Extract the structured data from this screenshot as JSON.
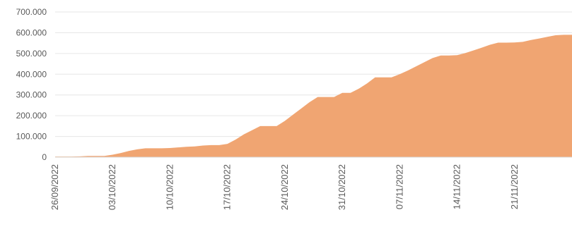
{
  "chart_data": {
    "type": "area",
    "title": "",
    "xlabel": "",
    "ylabel": "",
    "grid": true,
    "legend": "none",
    "ylim": [
      0,
      700000
    ],
    "yticks": [
      0,
      100000,
      200000,
      300000,
      400000,
      500000,
      600000,
      700000
    ],
    "ytick_labels": [
      "0",
      "100.000",
      "200.000",
      "300.000",
      "400.000",
      "500.000",
      "600.000",
      "700.000"
    ],
    "x_tick_labels": [
      "26/09/2022",
      "03/10/2022",
      "10/10/2022",
      "17/10/2022",
      "24/10/2022",
      "31/10/2022",
      "07/11/2022",
      "14/11/2022",
      "21/11/2022"
    ],
    "x_start": "26/09/2022",
    "x_end": "28/11/2022",
    "series": [
      {
        "color": "#f0a572",
        "x": [
          "26/09/2022",
          "27/09/2022",
          "28/09/2022",
          "29/09/2022",
          "30/09/2022",
          "01/10/2022",
          "02/10/2022",
          "03/10/2022",
          "04/10/2022",
          "05/10/2022",
          "06/10/2022",
          "07/10/2022",
          "08/10/2022",
          "09/10/2022",
          "10/10/2022",
          "11/10/2022",
          "12/10/2022",
          "13/10/2022",
          "14/10/2022",
          "15/10/2022",
          "16/10/2022",
          "17/10/2022",
          "18/10/2022",
          "19/10/2022",
          "20/10/2022",
          "21/10/2022",
          "22/10/2022",
          "23/10/2022",
          "24/10/2022",
          "25/10/2022",
          "26/10/2022",
          "27/10/2022",
          "28/10/2022",
          "29/10/2022",
          "30/10/2022",
          "31/10/2022",
          "01/11/2022",
          "02/11/2022",
          "03/11/2022",
          "04/11/2022",
          "05/11/2022",
          "06/11/2022",
          "07/11/2022",
          "08/11/2022",
          "09/11/2022",
          "10/11/2022",
          "11/11/2022",
          "12/11/2022",
          "13/11/2022",
          "14/11/2022",
          "15/11/2022",
          "16/11/2022",
          "17/11/2022",
          "18/11/2022",
          "19/11/2022",
          "20/11/2022",
          "21/11/2022",
          "22/11/2022",
          "23/11/2022",
          "24/11/2022",
          "25/11/2022",
          "26/11/2022",
          "27/11/2022",
          "28/11/2022"
        ],
        "values": [
          3000,
          3000,
          3000,
          4000,
          6000,
          6000,
          6000,
          12000,
          20000,
          30000,
          38000,
          43000,
          43000,
          43000,
          44000,
          47000,
          50000,
          52000,
          56000,
          58000,
          58000,
          64000,
          85000,
          110000,
          130000,
          150000,
          150000,
          150000,
          175000,
          205000,
          235000,
          265000,
          290000,
          290000,
          290000,
          310000,
          310000,
          330000,
          355000,
          385000,
          385000,
          385000,
          400000,
          418000,
          438000,
          458000,
          478000,
          490000,
          490000,
          492000,
          502000,
          515000,
          528000,
          542000,
          552000,
          552000,
          553000,
          556000,
          565000,
          572000,
          580000,
          588000,
          590000,
          590000
        ]
      }
    ]
  }
}
